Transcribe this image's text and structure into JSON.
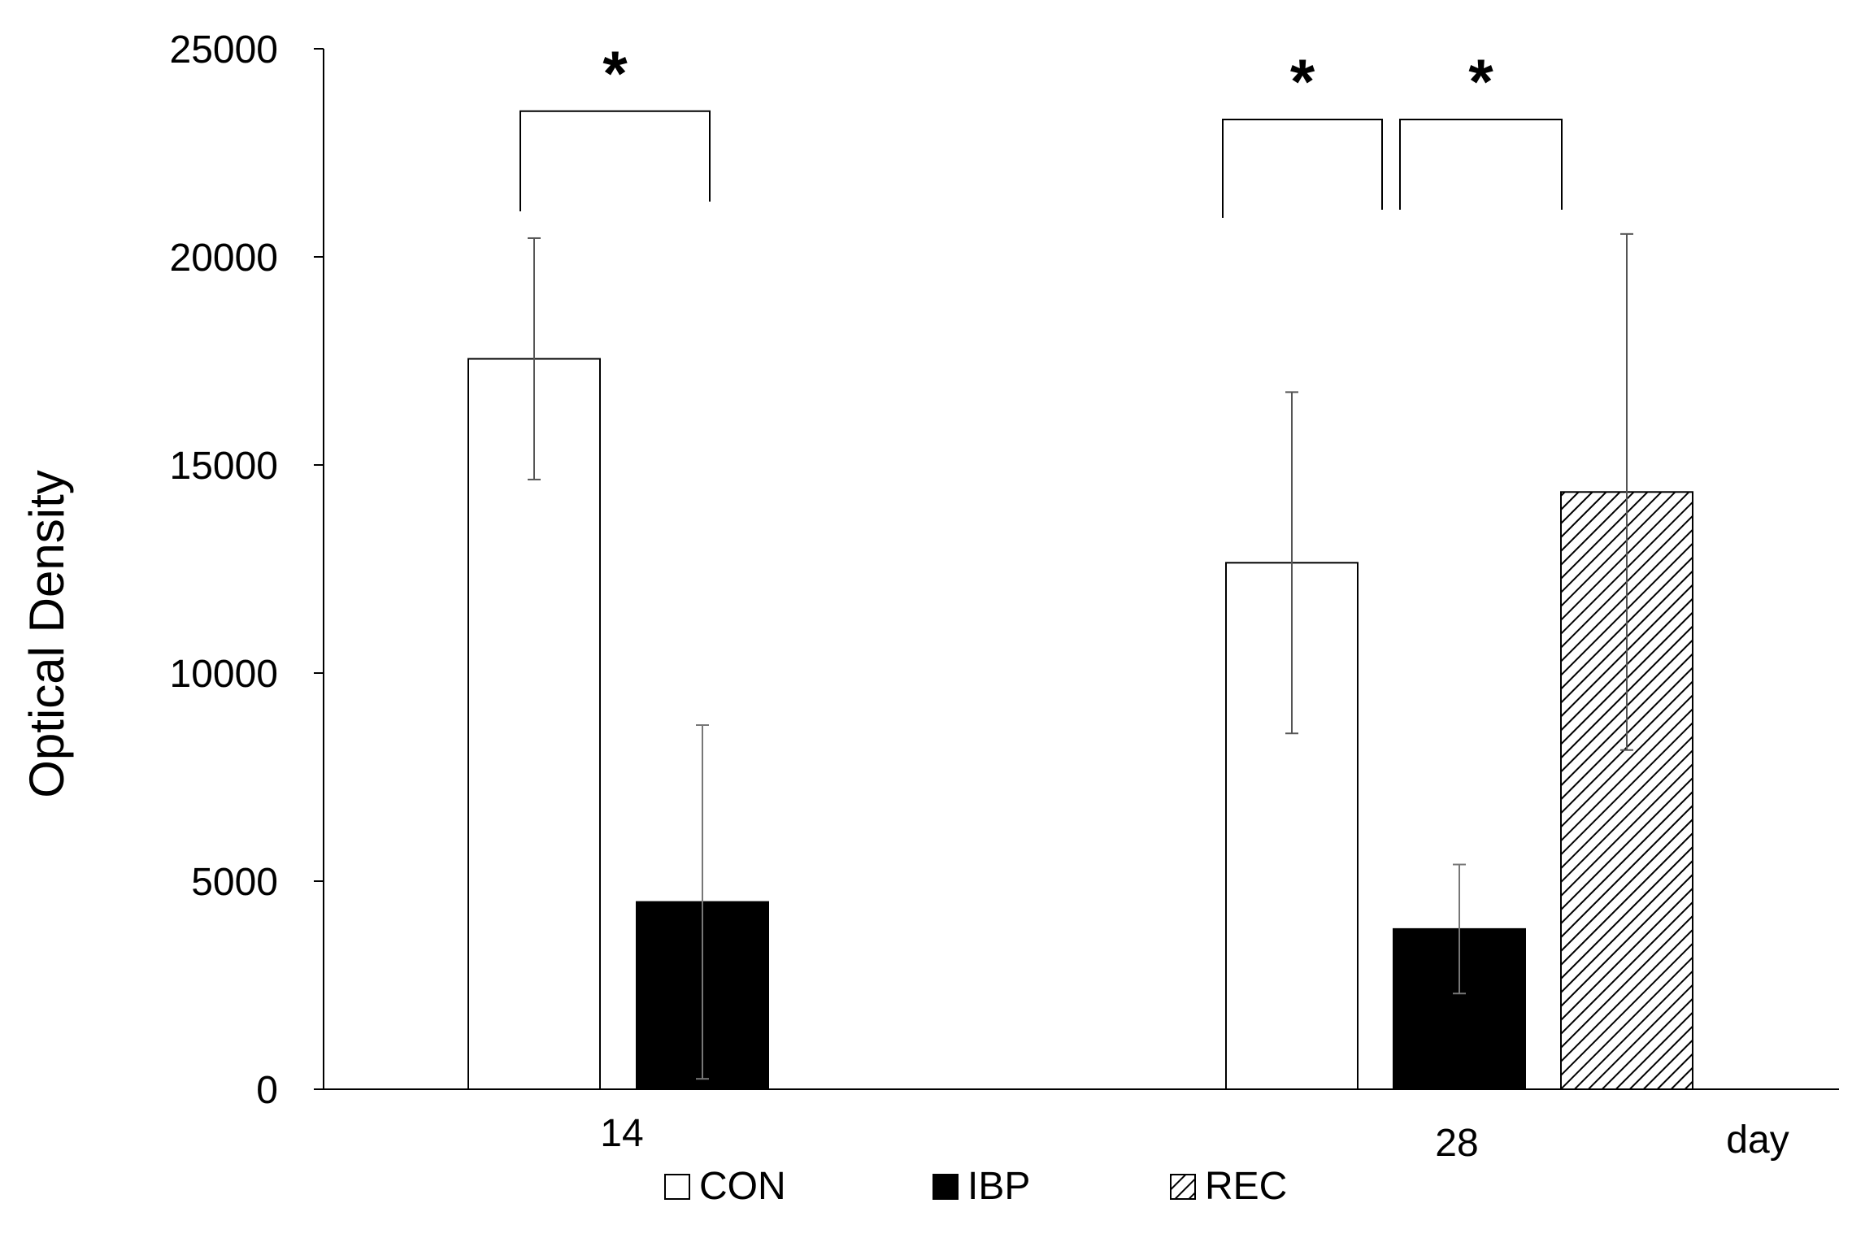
{
  "chart_data": {
    "type": "bar",
    "title": "",
    "xlabel": "day",
    "ylabel": "Optical Density",
    "ylim": [
      0,
      25000
    ],
    "yticks": [
      0,
      5000,
      10000,
      15000,
      20000,
      25000
    ],
    "grid": false,
    "legend_position": "bottom",
    "categories": [
      "14",
      "28"
    ],
    "series": [
      {
        "name": "CON",
        "fill": "#ffffff",
        "pattern": "none",
        "values": [
          17550,
          12650
        ],
        "error": [
          2900,
          4100
        ]
      },
      {
        "name": "IBP",
        "fill": "#000000",
        "pattern": "none",
        "values": [
          4500,
          3850
        ],
        "error": [
          4250,
          1550
        ]
      },
      {
        "name": "REC",
        "fill": "#ffffff",
        "pattern": "diagonal-hatch",
        "values": [
          null,
          14350
        ],
        "error": [
          null,
          6200
        ]
      }
    ],
    "annotations": [
      {
        "label": "*",
        "category": "14",
        "from_series": "CON",
        "to_series": "IBP",
        "level": 23500
      },
      {
        "label": "*",
        "category": "28",
        "from_series": "CON",
        "to_series": "IBP",
        "level": 23300
      },
      {
        "label": "*",
        "category": "28",
        "from_series": "IBP",
        "to_series": "REC",
        "level": 23300
      }
    ]
  }
}
